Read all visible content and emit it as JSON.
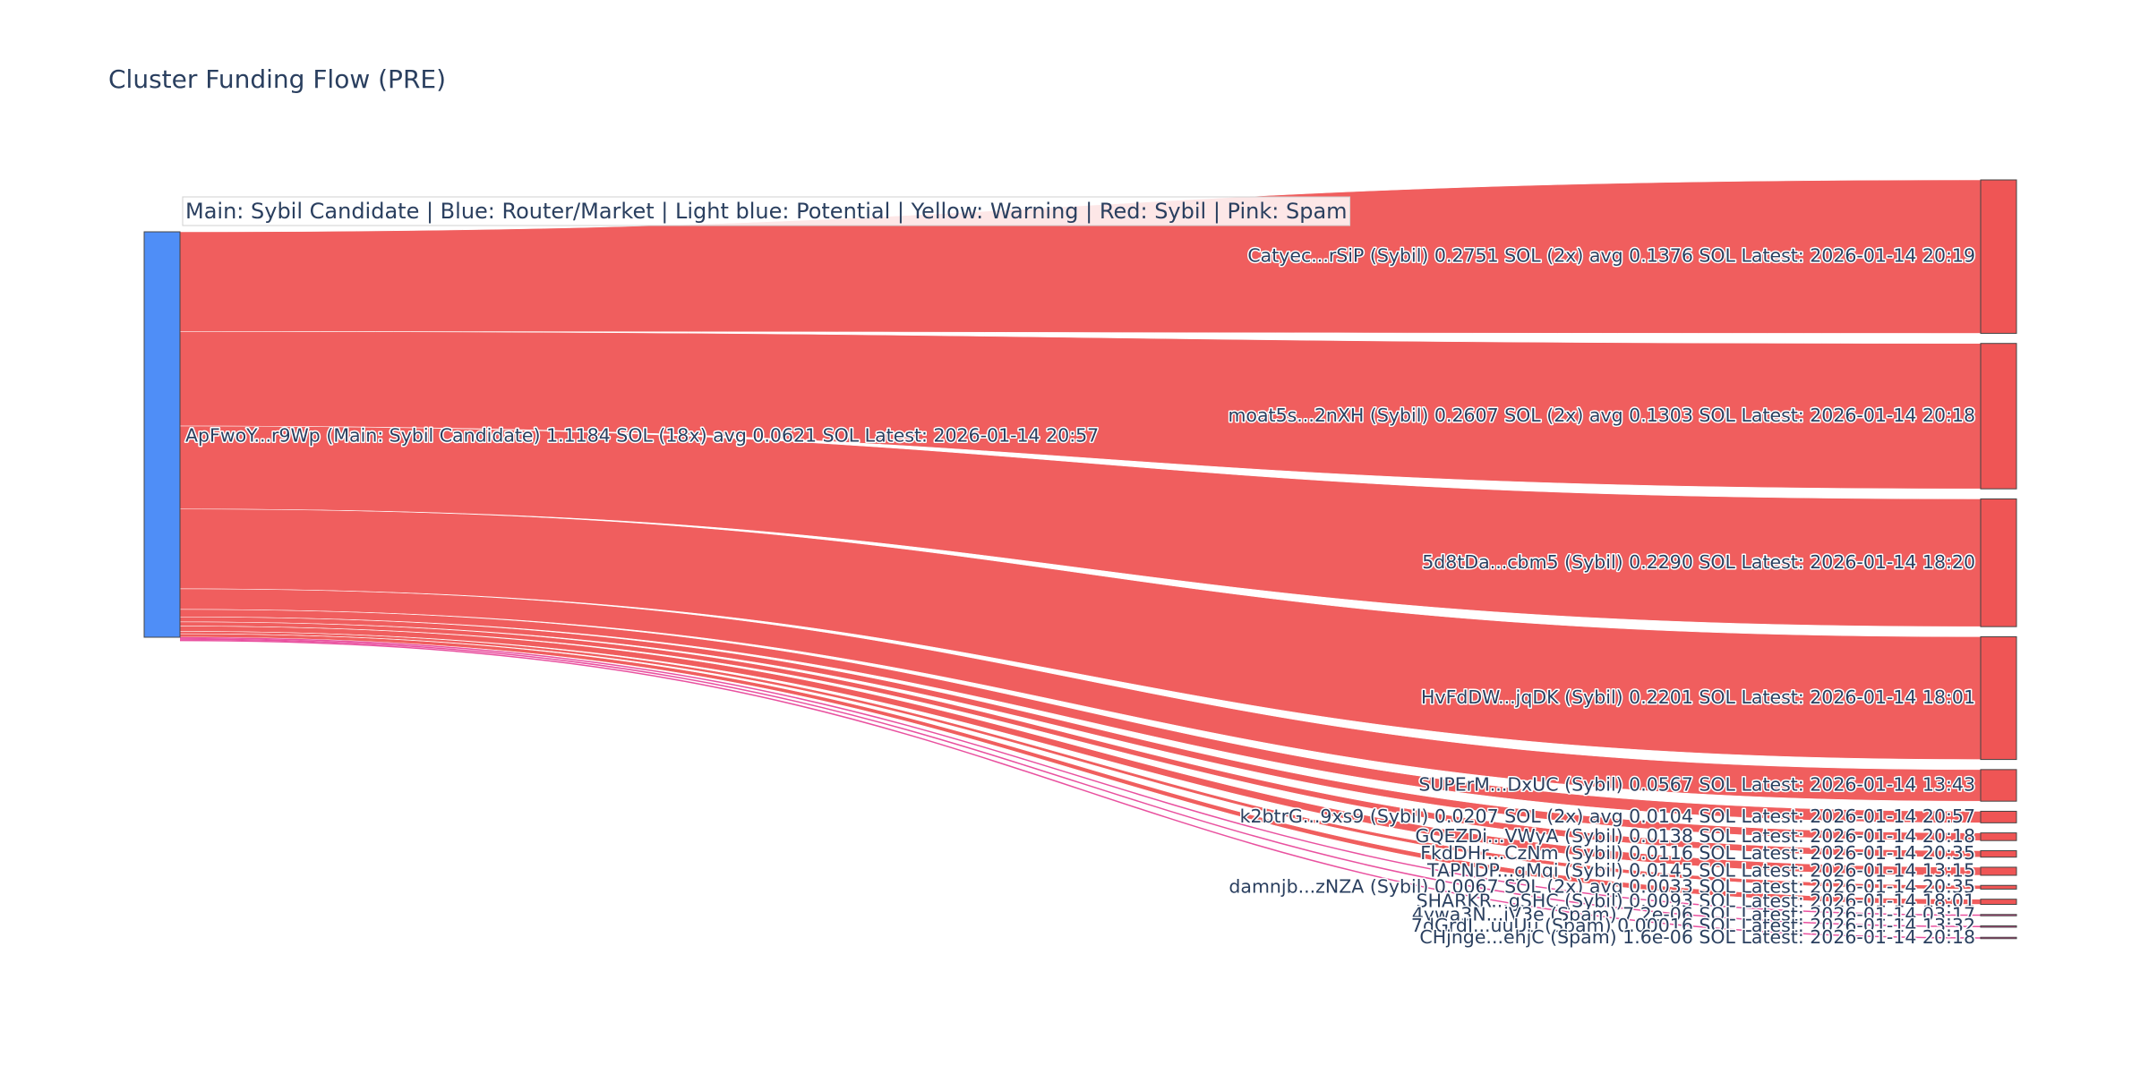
{
  "chart_data": {
    "type": "sankey",
    "title": "Cluster Funding Flow (PRE)",
    "annotation": "Main: Sybil Candidate  |  Blue: Router/Market | Light blue: Potential | Yellow: Warning | Red: Sybil | Pink: Spam",
    "colors": {
      "main": "#4f8ef7",
      "sybil": "#ef5555",
      "spam": "#e8489a"
    },
    "source": {
      "label": "ApFwoY...r9Wp (Main: Sybil Candidate) 1.1184 SOL (18x) avg 0.0621 SOL Latest: 2026-01-14 20:57",
      "category": "main",
      "total_sol": 1.1184
    },
    "targets": [
      {
        "label": "Catyec...rSiP (Sybil) 0.2751 SOL (2x) avg 0.1376 SOL Latest: 2026-01-14 20:19",
        "value": 0.2751,
        "category": "sybil"
      },
      {
        "label": "moat5s...2nXH (Sybil) 0.2607 SOL (2x) avg 0.1303 SOL Latest: 2026-01-14 20:18",
        "value": 0.2607,
        "category": "sybil"
      },
      {
        "label": "5d8tDa...cbm5 (Sybil) 0.2290 SOL Latest: 2026-01-14 18:20",
        "value": 0.229,
        "category": "sybil"
      },
      {
        "label": "HvFdDW...jqDK (Sybil) 0.2201 SOL Latest: 2026-01-14 18:01",
        "value": 0.2201,
        "category": "sybil"
      },
      {
        "label": "SUPErM...DxUC (Sybil) 0.0567 SOL Latest: 2026-01-14 13:43",
        "value": 0.0567,
        "category": "sybil"
      },
      {
        "label": "k2btrG...9xs9 (Sybil) 0.0207 SOL (2x) avg 0.0104 SOL Latest: 2026-01-14 20:57",
        "value": 0.0207,
        "category": "sybil"
      },
      {
        "label": "GQEZDi...VWyA (Sybil) 0.0138 SOL Latest: 2026-01-14 20:18",
        "value": 0.0138,
        "category": "sybil"
      },
      {
        "label": "FkdDHr...CzNm (Sybil) 0.0116 SOL Latest: 2026-01-14 20:35",
        "value": 0.0116,
        "category": "sybil"
      },
      {
        "label": "TAPNDP...gMqi (Sybil) 0.0145 SOL Latest: 2026-01-14 13:15",
        "value": 0.0145,
        "category": "sybil"
      },
      {
        "label": "damnjb...zNZA (Sybil) 0.0067 SOL (2x) avg 0.0033 SOL Latest: 2026-01-14 20:35",
        "value": 0.0067,
        "category": "sybil"
      },
      {
        "label": "SHARKR...gSHC (Sybil) 0.0093 SOL Latest: 2026-01-14 18:01",
        "value": 0.0093,
        "category": "sybil"
      },
      {
        "label": "4ywa3N...jV3e (Spam) 7.2e-06 SOL Latest: 2026-01-14 03:17",
        "value": 7.2e-06,
        "category": "spam"
      },
      {
        "label": "7dGrdJ...uuUu (Spam) 0.00016 SOL Latest: 2026-01-14 13:32",
        "value": 0.00016,
        "category": "spam"
      },
      {
        "label": "CHjnge...ehjC (Spam) 1.6e-06 SOL Latest: 2026-01-14 20:18",
        "value": 1.6e-06,
        "category": "spam"
      }
    ]
  }
}
